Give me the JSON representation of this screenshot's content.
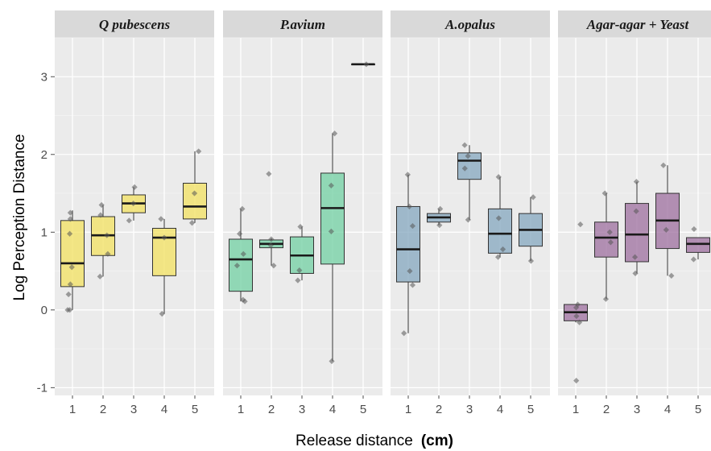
{
  "chart_data": {
    "type": "box",
    "facets": [
      "Q pubescens",
      "P.avium",
      "A.opalus",
      "Agar-agar + Yeast"
    ],
    "categories": [
      "1",
      "2",
      "3",
      "4",
      "5"
    ],
    "xlabel": "Release distance",
    "xlabel_unit": "(cm)",
    "ylabel": "Log Perception Distance",
    "ylim": [
      -1.1,
      3.5
    ],
    "yticks": [
      -1,
      0,
      1,
      2,
      3
    ],
    "ytick_labels": [
      "-1",
      "0",
      "1",
      "2",
      "3"
    ],
    "grid": true,
    "colors": [
      "#f3e05a",
      "#6ccf9f",
      "#7fa3bd",
      "#9a6a9b"
    ],
    "series": [
      {
        "name": "Q pubescens",
        "boxes": [
          {
            "q1": 0.3,
            "median": 0.6,
            "q3": 1.15,
            "whisker_low": 0.0,
            "whisker_high": 1.28,
            "points": [
              0.0,
              0.0,
              0.2,
              0.33,
              0.55,
              0.98,
              1.17,
              1.25
            ]
          },
          {
            "q1": 0.7,
            "median": 0.96,
            "q3": 1.2,
            "whisker_low": 0.43,
            "whisker_high": 1.35,
            "points": [
              0.43,
              0.72,
              0.96,
              1.22,
              1.35
            ]
          },
          {
            "q1": 1.25,
            "median": 1.37,
            "q3": 1.48,
            "whisker_low": 1.15,
            "whisker_high": 1.58,
            "points": [
              1.15,
              1.37,
              1.58
            ]
          },
          {
            "q1": 0.44,
            "median": 0.93,
            "q3": 1.05,
            "whisker_low": -0.05,
            "whisker_high": 1.17,
            "points": [
              -0.05,
              0.93,
              1.17
            ]
          },
          {
            "q1": 1.17,
            "median": 1.33,
            "q3": 1.63,
            "whisker_low": 1.12,
            "whisker_high": 2.04,
            "points": [
              1.12,
              1.5,
              2.04
            ]
          }
        ]
      },
      {
        "name": "P.avium",
        "boxes": [
          {
            "q1": 0.24,
            "median": 0.65,
            "q3": 0.91,
            "whisker_low": 0.11,
            "whisker_high": 1.3,
            "points": [
              0.11,
              0.13,
              0.57,
              0.72,
              0.98,
              1.3
            ]
          },
          {
            "q1": 0.8,
            "median": 0.85,
            "q3": 0.9,
            "whisker_low": 0.57,
            "whisker_high": 0.92,
            "points": [
              0.57,
              0.83,
              0.91,
              1.75
            ]
          },
          {
            "q1": 0.47,
            "median": 0.7,
            "q3": 0.94,
            "whisker_low": 0.38,
            "whisker_high": 1.07,
            "points": [
              0.38,
              0.51,
              1.07
            ]
          },
          {
            "q1": 0.59,
            "median": 1.31,
            "q3": 1.76,
            "whisker_low": -0.66,
            "whisker_high": 2.27,
            "points": [
              -0.66,
              1.01,
              1.6,
              2.27
            ]
          },
          {
            "q1": 3.16,
            "median": 3.16,
            "q3": 3.16,
            "whisker_low": 3.16,
            "whisker_high": 3.16,
            "points": [
              3.16
            ]
          }
        ]
      },
      {
        "name": "A.opalus",
        "boxes": [
          {
            "q1": 0.36,
            "median": 0.78,
            "q3": 1.33,
            "whisker_low": -0.3,
            "whisker_high": 1.74,
            "points": [
              -0.3,
              0.32,
              0.5,
              1.08,
              1.33,
              1.74
            ]
          },
          {
            "q1": 1.13,
            "median": 1.19,
            "q3": 1.24,
            "whisker_low": 1.09,
            "whisker_high": 1.3,
            "points": [
              1.09,
              1.3
            ]
          },
          {
            "q1": 1.68,
            "median": 1.92,
            "q3": 2.02,
            "whisker_low": 1.16,
            "whisker_high": 2.12,
            "points": [
              1.16,
              1.82,
              1.98,
              2.12
            ]
          },
          {
            "q1": 0.73,
            "median": 0.98,
            "q3": 1.3,
            "whisker_low": 0.68,
            "whisker_high": 1.71,
            "points": [
              0.68,
              0.78,
              1.18,
              1.71
            ]
          },
          {
            "q1": 0.82,
            "median": 1.03,
            "q3": 1.24,
            "whisker_low": 0.63,
            "whisker_high": 1.45,
            "points": [
              0.63,
              1.45
            ]
          }
        ]
      },
      {
        "name": "Agar-agar + Yeast",
        "boxes": [
          {
            "q1": -0.14,
            "median": -0.03,
            "q3": 0.07,
            "whisker_low": -0.16,
            "whisker_high": 0.07,
            "points": [
              -0.91,
              -0.16,
              -0.08,
              0.03,
              0.07,
              1.1
            ]
          },
          {
            "q1": 0.68,
            "median": 0.93,
            "q3": 1.13,
            "whisker_low": 0.14,
            "whisker_high": 1.5,
            "points": [
              0.14,
              0.87,
              1.0,
              1.5
            ]
          },
          {
            "q1": 0.62,
            "median": 0.97,
            "q3": 1.37,
            "whisker_low": 0.47,
            "whisker_high": 1.65,
            "points": [
              0.47,
              0.68,
              1.27,
              1.65
            ]
          },
          {
            "q1": 0.79,
            "median": 1.15,
            "q3": 1.5,
            "whisker_low": 0.44,
            "whisker_high": 1.86,
            "points": [
              0.44,
              1.03,
              1.86
            ]
          },
          {
            "q1": 0.74,
            "median": 0.85,
            "q3": 0.93,
            "whisker_low": 0.65,
            "whisker_high": 0.93,
            "points": [
              0.65,
              1.04
            ]
          }
        ]
      }
    ]
  }
}
